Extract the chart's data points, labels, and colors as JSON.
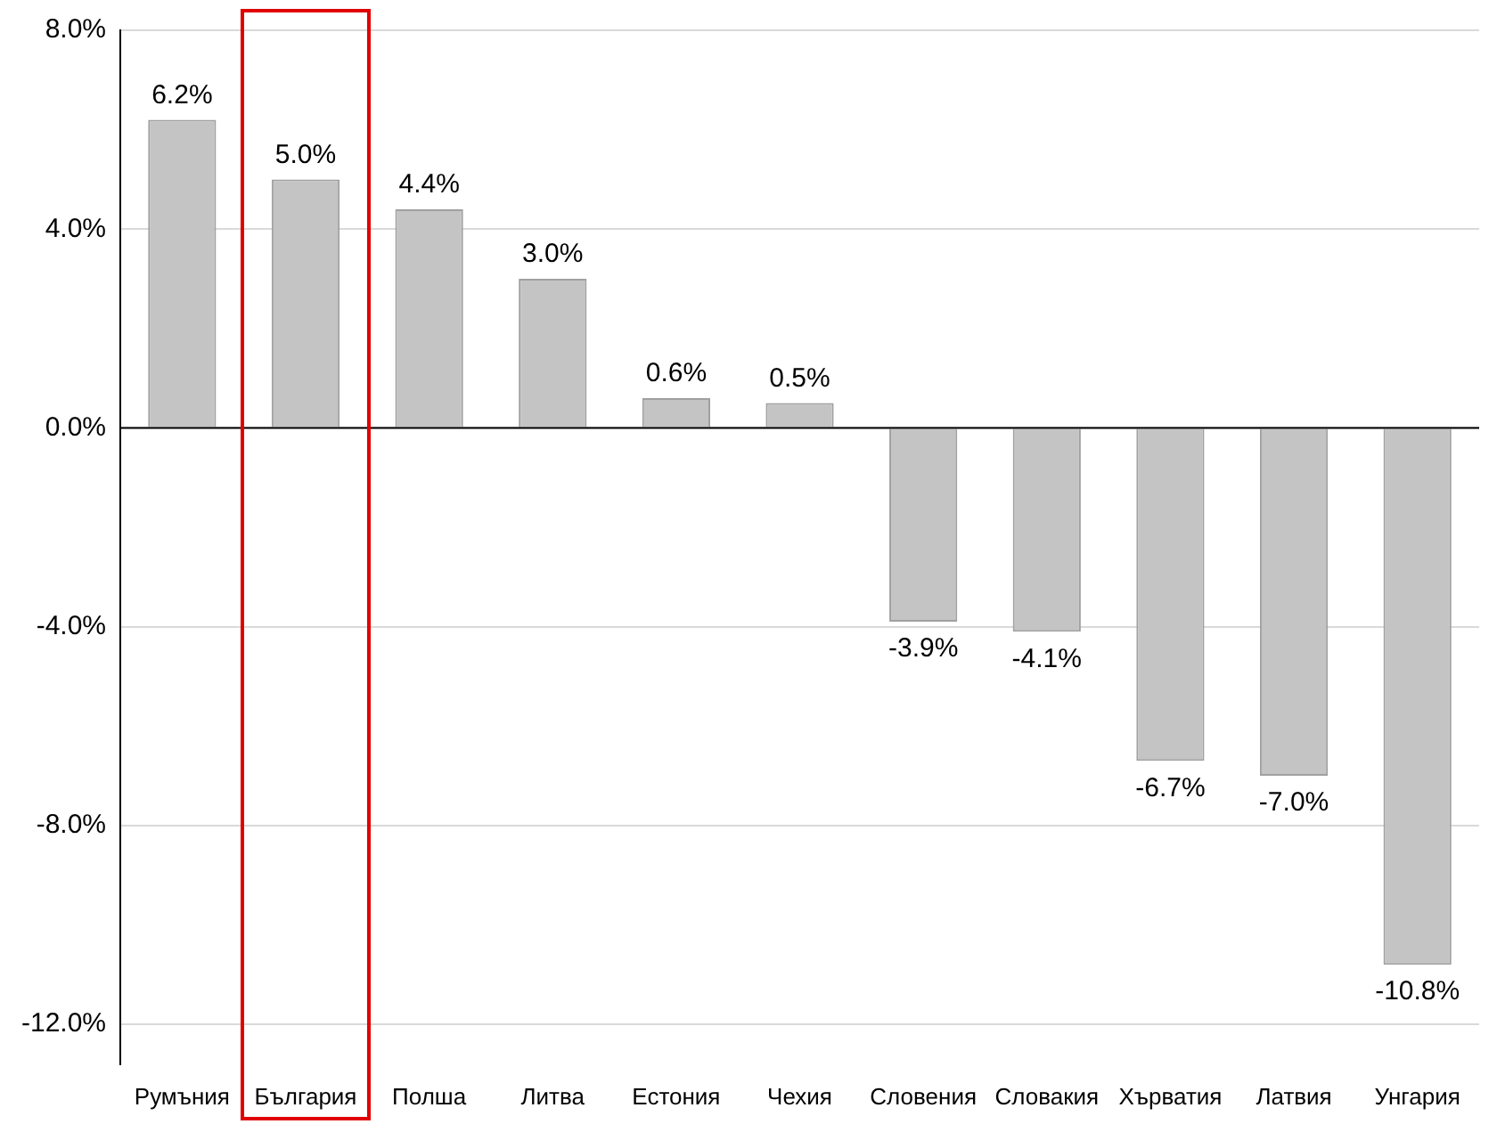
{
  "chart_data": {
    "type": "bar",
    "categories": [
      "Румъния",
      "България",
      "Полша",
      "Литва",
      "Естония",
      "Чехия",
      "Словения",
      "Словакия",
      "Хърватия",
      "Латвия",
      "Унгария"
    ],
    "values": [
      6.2,
      5.0,
      4.4,
      3.0,
      0.6,
      0.5,
      -3.9,
      -4.1,
      -6.7,
      -7.0,
      -10.8
    ],
    "value_labels": [
      "6.2%",
      "5.0%",
      "4.4%",
      "3.0%",
      "0.6%",
      "0.5%",
      "-3.9%",
      "-4.1%",
      "-6.7%",
      "-7.0%",
      "-10.8%"
    ],
    "color": "#c4c4c4",
    "ylim": [
      -12.8,
      8
    ],
    "yticks": [
      {
        "value": -12,
        "label": "-12.0%"
      },
      {
        "value": -8,
        "label": "-8.0%"
      },
      {
        "value": -4,
        "label": "-4.0%"
      },
      {
        "value": 0,
        "label": "0.0%"
      },
      {
        "value": 4,
        "label": "4.0%"
      },
      {
        "value": 8,
        "label": "8.0%"
      }
    ],
    "grid": "y",
    "legend": false
  }
}
